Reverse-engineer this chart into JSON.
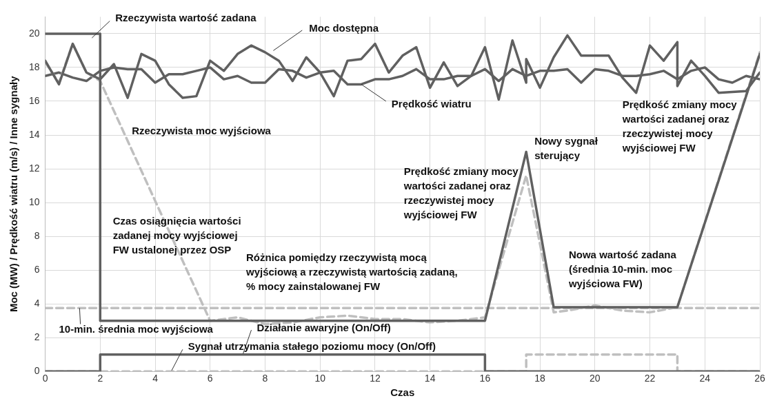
{
  "chart_data": {
    "type": "line",
    "xlabel": "Czas",
    "ylabel": "Moc (MW) / Prędkość wiatru (m/s) / Inne sygnały",
    "xlim": [
      0,
      26
    ],
    "ylim": [
      0,
      21
    ],
    "xticks": [
      0,
      2,
      4,
      6,
      8,
      10,
      12,
      14,
      16,
      18,
      20,
      22,
      24,
      26
    ],
    "yticks": [
      0,
      2,
      4,
      6,
      8,
      10,
      12,
      14,
      16,
      18,
      20
    ],
    "grid": true,
    "legend": false,
    "marker": "none",
    "series": [
      {
        "name": "Rzeczywista wartość zadana",
        "color": "#606060",
        "line_style": "solid",
        "x": [
          0,
          2,
          2,
          16,
          17.5,
          18.5,
          23,
          26
        ],
        "values": [
          20,
          20,
          3,
          3,
          13,
          3.8,
          3.8,
          18.8
        ]
      },
      {
        "name": "Moc dostępna",
        "color": "#606060",
        "line_style": "solid",
        "x": [
          0,
          0.5,
          1,
          1.5,
          2,
          2.5,
          3,
          3.5,
          4,
          4.5,
          5,
          5.5,
          6,
          6.5,
          7,
          7.5,
          8,
          8.5,
          9,
          9.5,
          10,
          10.5,
          11,
          11.5,
          12,
          12.5,
          13,
          13.5,
          14,
          14.5,
          15,
          15.5,
          16,
          16.5,
          17,
          17.5,
          17.5,
          18,
          18.5,
          19,
          19.5,
          20,
          20.5,
          21,
          21.5,
          22,
          22.5,
          23,
          23,
          23.5,
          24,
          24.5,
          25.5,
          26
        ],
        "values": [
          18.4,
          17.0,
          19.4,
          17.7,
          17.3,
          18.2,
          16.2,
          18.8,
          18.4,
          17.0,
          16.2,
          16.3,
          18.4,
          17.8,
          18.8,
          19.3,
          18.9,
          18.4,
          17.2,
          18.6,
          17.7,
          16.3,
          18.4,
          18.5,
          19.4,
          17.7,
          18.7,
          19.2,
          16.8,
          18.3,
          16.9,
          17.5,
          19.2,
          16.1,
          19.6,
          17.1,
          18.5,
          16.8,
          18.6,
          19.9,
          18.7,
          18.7,
          18.7,
          17.4,
          16.5,
          19.3,
          18.4,
          19.5,
          16.9,
          18.4,
          17.5,
          16.5,
          16.6,
          17.7
        ]
      },
      {
        "name": "Rzeczywista moc wyjściowa",
        "color": "#bfbfbf",
        "line_style": "dashed",
        "x": [
          0,
          0.5,
          1,
          1.5,
          2,
          6,
          7,
          8,
          9,
          10,
          11,
          12,
          13,
          14,
          15,
          16,
          17.5,
          18.5,
          19,
          20,
          21,
          22,
          23,
          26
        ],
        "values": [
          18.3,
          17.1,
          19.4,
          17.7,
          17.2,
          3.0,
          3.2,
          2.8,
          2.9,
          3.2,
          3.3,
          3.1,
          3.1,
          2.9,
          3.0,
          3.2,
          11.6,
          3.5,
          3.6,
          3.9,
          3.6,
          3.5,
          3.8,
          18.9
        ]
      },
      {
        "name": "Prędkość wiatru",
        "color": "#606060",
        "line_style": "solid",
        "x": [
          0,
          0.5,
          1,
          1.5,
          2,
          2.5,
          3,
          3.5,
          4,
          4.5,
          5,
          5.5,
          6,
          6.5,
          7,
          7.5,
          8,
          8.5,
          9,
          9.5,
          10,
          10.5,
          11,
          11.5,
          12,
          12.5,
          13,
          13.5,
          14,
          14.5,
          15,
          15.5,
          16,
          16.5,
          17,
          17.5,
          18,
          18.5,
          19,
          19.5,
          20,
          20.5,
          21,
          21.5,
          22,
          22.5,
          23,
          23.5,
          24,
          24.5,
          25,
          25.5,
          26
        ],
        "values": [
          17.5,
          17.7,
          17.4,
          17.2,
          17.8,
          18.0,
          17.9,
          17.9,
          17.1,
          17.6,
          17.6,
          17.8,
          18.0,
          17.3,
          17.5,
          17.1,
          17.1,
          17.9,
          17.8,
          17.4,
          17.7,
          17.8,
          17.0,
          17.0,
          17.3,
          17.3,
          17.5,
          17.9,
          17.3,
          17.3,
          17.5,
          17.5,
          17.9,
          17.2,
          17.9,
          17.5,
          17.8,
          17.8,
          17.9,
          17.1,
          17.9,
          17.8,
          17.5,
          17.5,
          17.6,
          17.8,
          17.3,
          17.8,
          18.0,
          17.3,
          17.1,
          17.5,
          17.3
        ]
      },
      {
        "name": "10-min. średnia moc wyjściowa",
        "color": "#bfbfbf",
        "line_style": "dashed",
        "x": [
          0,
          26
        ],
        "values": [
          3.75,
          3.75
        ]
      },
      {
        "name": "Działanie awaryjne (On/Off)",
        "color": "#606060",
        "line_style": "solid",
        "x": [
          0,
          2,
          2,
          16,
          16,
          26
        ],
        "values": [
          0,
          0,
          1,
          1,
          0,
          0
        ]
      },
      {
        "name": "Sygnał utrzymania stałego poziomu mocy (On/Off)",
        "color": "#bfbfbf",
        "line_style": "dashed",
        "x": [
          0,
          17.5,
          17.5,
          23,
          23,
          26
        ],
        "values": [
          0,
          0,
          1,
          1,
          0,
          0
        ]
      }
    ],
    "annotations": [
      "Prędkość zmiany mocy\nwartości zadanej oraz\nrzeczywistej mocy\nwyjściowej FW",
      "Nowy sygnał\nsterujący",
      "Prędkość zmiany mocy\nwartości zadanej oraz\nrzeczywistej mocy\nwyjściowej FW",
      "Czas osiągnięcia wartości\nzadanej mocy wyjściowej\nFW ustalonej przez OSP",
      "Różnica pomiędzy rzeczywistą mocą\nwyjściową a rzeczywistą wartością zadaną,\n% mocy zainstalowanej FW",
      "Nowa wartość zadana\n(średnia 10-min. moc\nwyjściowa FW)"
    ]
  }
}
